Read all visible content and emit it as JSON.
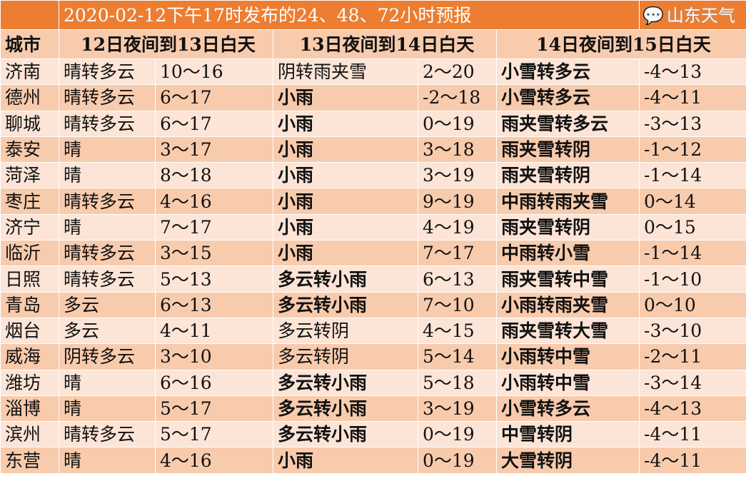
{
  "title": "2020-02-12下午17时发布的24、48、72小时预报",
  "headers": [
    "城市",
    "12日夜间到13日白天",
    "13日夜间到14日白天",
    "14日夜间到15日白天"
  ],
  "rows": [
    {
      "city": "济南",
      "w1": "晴转多云",
      "t1": "10～16",
      "w2": "阴转雨夹雪",
      "w2bold": false,
      "t2": "2～20",
      "w3": "小雪转多云",
      "t3": "-4～13"
    },
    {
      "city": "德州",
      "w1": "晴转多云",
      "t1": "6～17",
      "w2": "小雨",
      "w2bold": true,
      "t2": "-2～18",
      "w3": "小雪转多云",
      "t3": "-4～11"
    },
    {
      "city": "聊城",
      "w1": "晴转多云",
      "t1": "6～17",
      "w2": "小雨",
      "w2bold": true,
      "t2": "0～19",
      "w3": "雨夹雪转多云",
      "t3": "-3～13"
    },
    {
      "city": "泰安",
      "w1": "晴",
      "t1": "3～17",
      "w2": "小雨",
      "w2bold": true,
      "t2": "3～18",
      "w3": "雨夹雪转阴",
      "t3": "-1～12"
    },
    {
      "city": "菏泽",
      "w1": "晴",
      "t1": "8～18",
      "w2": "小雨",
      "w2bold": true,
      "t2": "3～19",
      "w3": "雨夹雪转阴",
      "t3": "-1～14"
    },
    {
      "city": "枣庄",
      "w1": "晴转多云",
      "t1": "4～16",
      "w2": "小雨",
      "w2bold": true,
      "t2": "9～19",
      "w3": "中雨转雨夹雪",
      "t3": "0～14"
    },
    {
      "city": "济宁",
      "w1": "晴",
      "t1": "7～17",
      "w2": "小雨",
      "w2bold": true,
      "t2": "4～19",
      "w3": "雨夹雪转阴",
      "t3": "0～15"
    },
    {
      "city": "临沂",
      "w1": "晴转多云",
      "t1": "3～15",
      "w2": "小雨",
      "w2bold": true,
      "t2": "7～17",
      "w3": "中雨转小雪",
      "t3": "-1～14"
    },
    {
      "city": "日照",
      "w1": "晴转多云",
      "t1": "5～13",
      "w2": "多云转小雨",
      "w2bold": true,
      "t2": "6～13",
      "w3": "雨夹雪转中雪",
      "t3": "-1～10"
    },
    {
      "city": "青岛",
      "w1": "多云",
      "t1": "6～13",
      "w2": "多云转小雨",
      "w2bold": true,
      "t2": "7～10",
      "w3": "小雨转雨夹雪",
      "t3": "0～10"
    },
    {
      "city": "烟台",
      "w1": "多云",
      "t1": "4～11",
      "w2": "多云转阴",
      "w2bold": false,
      "t2": "4～15",
      "w3": "雨夹雪转大雪",
      "t3": "-3～10"
    },
    {
      "city": "威海",
      "w1": "阴转多云",
      "t1": "3～10",
      "w2": "多云转阴",
      "w2bold": false,
      "t2": "5～14",
      "w3": "小雨转中雪",
      "t3": "-2～11"
    },
    {
      "city": "潍坊",
      "w1": "晴",
      "t1": "6～16",
      "w2": "多云转小雨",
      "w2bold": true,
      "t2": "5～18",
      "w3": "小雨转中雪",
      "t3": "-3～14"
    },
    {
      "city": "淄博",
      "w1": "晴",
      "t1": "5～17",
      "w2": "多云转小雨",
      "w2bold": true,
      "t2": "3～19",
      "w3": "小雪转多云",
      "t3": "-4～13"
    },
    {
      "city": "滨州",
      "w1": "晴转多云",
      "t1": "5～17",
      "w2": "多云转小雨",
      "w2bold": true,
      "t2": "0～19",
      "w3": "中雪转阴",
      "t3": "-4～11"
    },
    {
      "city": "东营",
      "w1": "晴",
      "t1": "4～16",
      "w2": "小雨",
      "w2bold": true,
      "t2": "0～19",
      "w3": "大雪转阴",
      "t3": "-4～11"
    }
  ],
  "watermark": "山东天气",
  "colors": {
    "title": "#ED7D31",
    "band_light": "#FCE4D6",
    "band_dark": "#F8CBAD"
  }
}
